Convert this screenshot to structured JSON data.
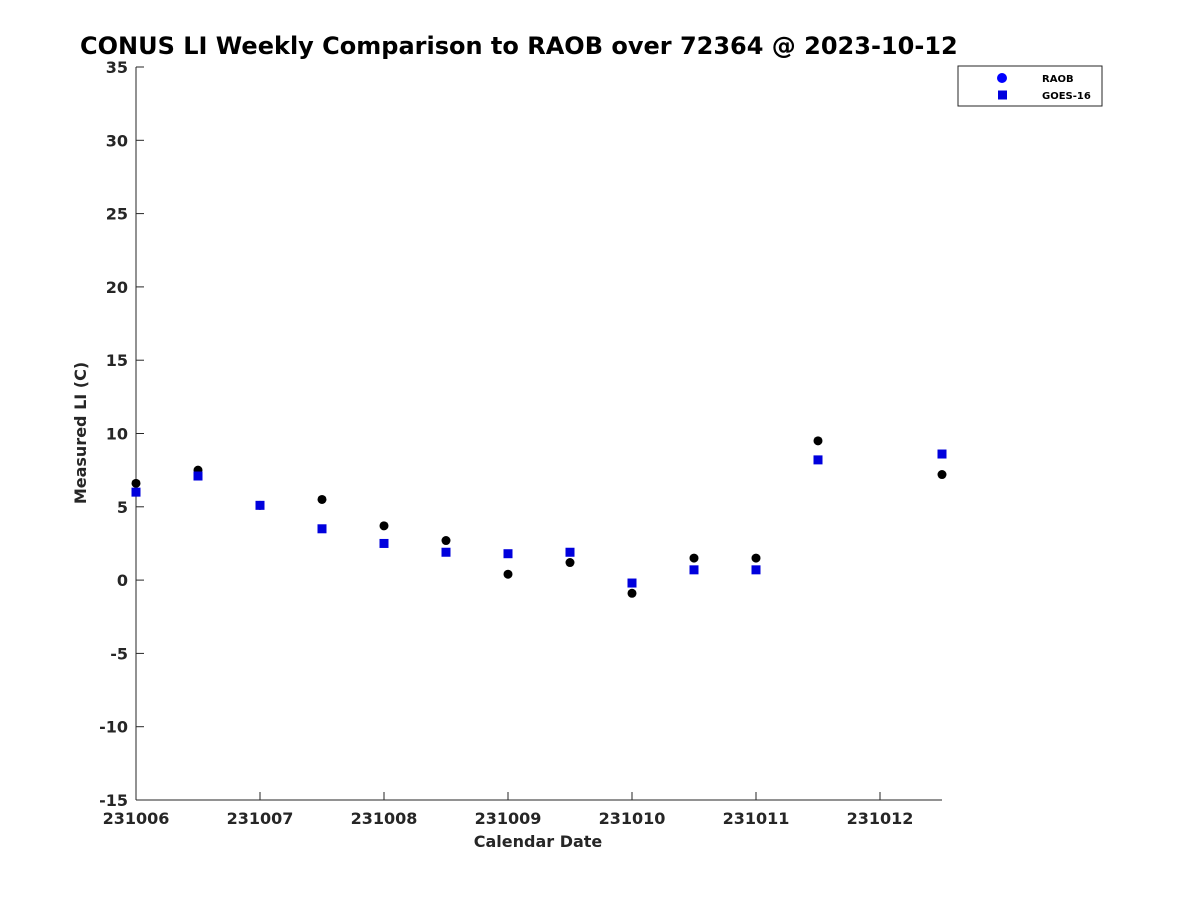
{
  "chart_data": {
    "type": "scatter",
    "title": "CONUS LI Weekly Comparison to RAOB over 72364 @ 2023-10-12",
    "xlabel": "Calendar Date",
    "ylabel": "Measured LI (C)",
    "xlim": [
      231006,
      231012.5
    ],
    "ylim": [
      -15,
      35
    ],
    "x_ticks": [
      231006,
      231007,
      231008,
      231009,
      231010,
      231011,
      231012
    ],
    "x_tick_labels": [
      "231006",
      "231007",
      "231008",
      "231009",
      "231010",
      "231011",
      "231012"
    ],
    "y_ticks": [
      -15,
      -10,
      -5,
      0,
      5,
      10,
      15,
      20,
      25,
      30,
      35
    ],
    "y_tick_labels": [
      "-15",
      "-10",
      "-5",
      "0",
      "5",
      "10",
      "15",
      "20",
      "25",
      "30",
      "35"
    ],
    "grid": false,
    "legend_position": "top-right",
    "series": [
      {
        "name": "RAOB",
        "marker": "circle",
        "color": "#000000",
        "legend_color": "#0000ff",
        "x": [
          231006,
          231006.5,
          231007,
          231007.5,
          231008,
          231008.5,
          231009,
          231009.5,
          231010,
          231010.5,
          231011,
          231011.5,
          231012.5
        ],
        "y": [
          6.6,
          7.5,
          5.1,
          5.5,
          3.7,
          2.7,
          0.4,
          1.2,
          -0.9,
          1.5,
          1.5,
          9.5,
          7.2
        ]
      },
      {
        "name": "GOES-16",
        "marker": "square",
        "color": "#0000dd",
        "x": [
          231006,
          231006.5,
          231007,
          231007.5,
          231008,
          231008.5,
          231009,
          231009.5,
          231010,
          231010.5,
          231011,
          231011.5,
          231012.5
        ],
        "y": [
          6.0,
          7.1,
          5.1,
          3.5,
          2.5,
          1.9,
          1.8,
          1.9,
          -0.2,
          0.7,
          0.7,
          8.2,
          8.6
        ]
      }
    ]
  }
}
